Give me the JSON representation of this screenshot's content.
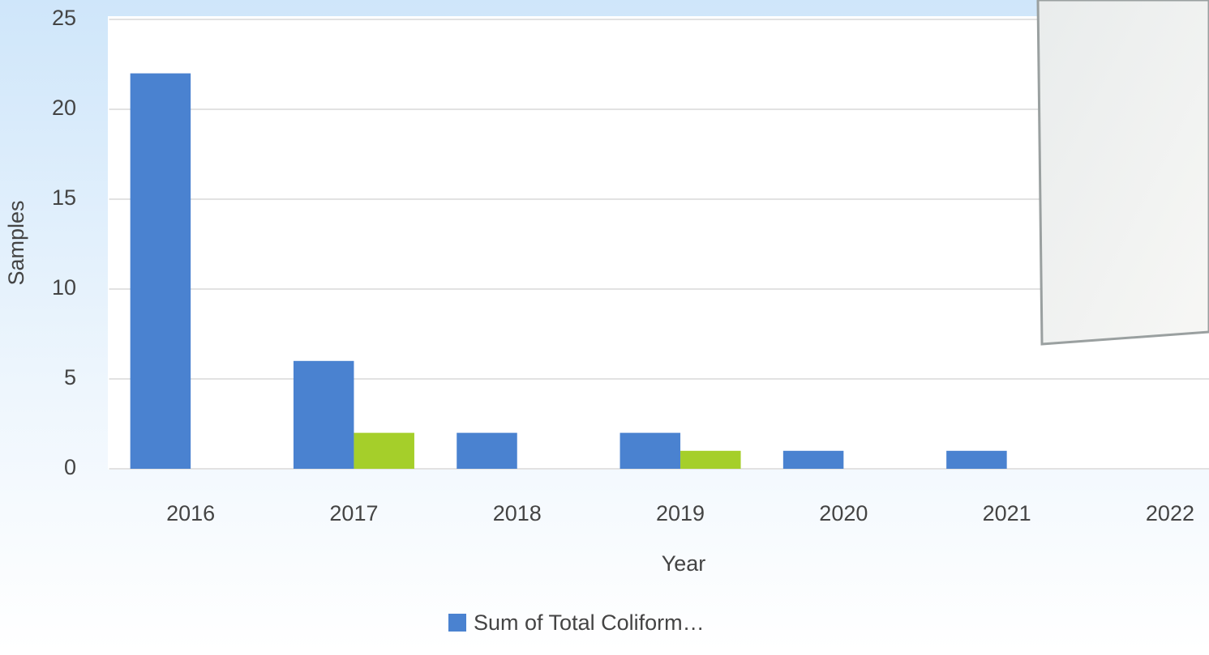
{
  "chart_data": {
    "type": "bar",
    "x_label": "Year",
    "y_label": "Samples",
    "categories": [
      "2016",
      "2017",
      "2018",
      "2019",
      "2020",
      "2021",
      "2022"
    ],
    "series": [
      {
        "name": "Sum of Total Coliform…",
        "color": "#4a82d0",
        "values": [
          22,
          6,
          2,
          2,
          1,
          1,
          null
        ]
      },
      {
        "color": "#a5cf2a",
        "values": [
          null,
          2,
          null,
          1,
          null,
          null,
          null
        ]
      }
    ],
    "ylim": [
      0,
      25
    ],
    "yticks": [
      0,
      5,
      10,
      15,
      20,
      25
    ],
    "grid": true
  }
}
